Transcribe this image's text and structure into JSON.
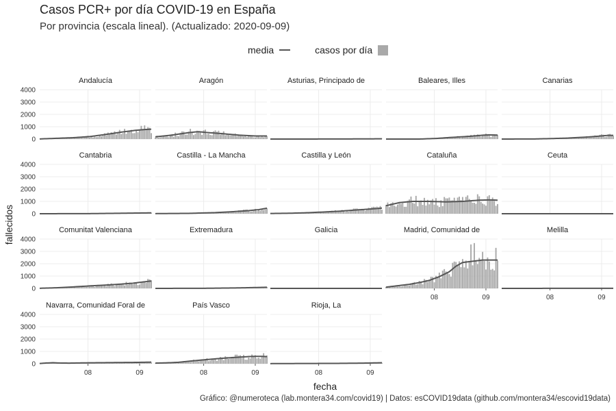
{
  "chart_data": {
    "type": "bar",
    "title": "Casos PCR+ por día COVID-19 en España",
    "subtitle": "Por provincia (escala lineal). (Actualizado: 2020-09-09)",
    "xlabel": "fecha",
    "ylabel": "fallecidos",
    "ylim": [
      0,
      4000
    ],
    "y_ticks": [
      0,
      1000,
      2000,
      3000,
      4000
    ],
    "y_tick_labels": [
      "0",
      "1000",
      "2000",
      "3000",
      "4000"
    ],
    "x_ticks": [
      "2020-08-01",
      "2020-09-01"
    ],
    "x_tick_labels": [
      "08",
      "09"
    ],
    "x_range": [
      "2020-07-03",
      "2020-09-08"
    ],
    "legend": {
      "placement": "top",
      "line_label": "media",
      "bar_label": "casos por día"
    },
    "caption": "Gráfico: @numeroteca (lab.montera34.com/covid19) | Datos: esCOVID19data (github.com/montera34/escovid19data)",
    "bar_color": "#a9a9a9",
    "line_color": "#555555",
    "grid": true,
    "panels": [
      {
        "name": "Andalucía",
        "bar_keys": [
          [
            0,
            10
          ],
          [
            8,
            40
          ],
          [
            16,
            90
          ],
          [
            22,
            120
          ],
          [
            30,
            200
          ],
          [
            36,
            300
          ],
          [
            42,
            420
          ],
          [
            48,
            560
          ],
          [
            54,
            700
          ],
          [
            59,
            800
          ],
          [
            64,
            820
          ],
          [
            67,
            780
          ]
        ],
        "line_keys": [
          [
            0,
            10
          ],
          [
            10,
            60
          ],
          [
            20,
            110
          ],
          [
            30,
            200
          ],
          [
            40,
            380
          ],
          [
            50,
            580
          ],
          [
            57,
            700
          ],
          [
            62,
            760
          ],
          [
            67,
            800
          ]
        ]
      },
      {
        "name": "Aragón",
        "bar_keys": [
          [
            0,
            180
          ],
          [
            6,
            250
          ],
          [
            10,
            320
          ],
          [
            16,
            450
          ],
          [
            22,
            600
          ],
          [
            26,
            520
          ],
          [
            30,
            560
          ],
          [
            36,
            500
          ],
          [
            42,
            420
          ],
          [
            48,
            350
          ],
          [
            54,
            280
          ],
          [
            60,
            240
          ],
          [
            67,
            230
          ]
        ],
        "line_keys": [
          [
            0,
            180
          ],
          [
            10,
            320
          ],
          [
            20,
            520
          ],
          [
            26,
            600
          ],
          [
            30,
            540
          ],
          [
            40,
            440
          ],
          [
            50,
            320
          ],
          [
            60,
            250
          ],
          [
            67,
            250
          ]
        ]
      },
      {
        "name": "Asturias, Principado de",
        "bar_keys": [
          [
            0,
            0
          ],
          [
            40,
            5
          ],
          [
            67,
            20
          ]
        ],
        "line_keys": [
          [
            0,
            0
          ],
          [
            40,
            5
          ],
          [
            67,
            20
          ]
        ]
      },
      {
        "name": "Baleares, Illes",
        "bar_keys": [
          [
            0,
            0
          ],
          [
            18,
            0
          ],
          [
            22,
            20
          ],
          [
            30,
            60
          ],
          [
            36,
            110
          ],
          [
            42,
            160
          ],
          [
            48,
            220
          ],
          [
            54,
            280
          ],
          [
            58,
            350
          ],
          [
            62,
            300
          ],
          [
            67,
            260
          ]
        ],
        "line_keys": [
          [
            0,
            0
          ],
          [
            20,
            0
          ],
          [
            30,
            50
          ],
          [
            40,
            140
          ],
          [
            50,
            220
          ],
          [
            58,
            310
          ],
          [
            62,
            340
          ],
          [
            67,
            320
          ]
        ]
      },
      {
        "name": "Canarias",
        "bar_keys": [
          [
            0,
            0
          ],
          [
            20,
            10
          ],
          [
            30,
            40
          ],
          [
            40,
            80
          ],
          [
            50,
            150
          ],
          [
            58,
            240
          ],
          [
            64,
            320
          ],
          [
            67,
            300
          ]
        ],
        "line_keys": [
          [
            0,
            0
          ],
          [
            20,
            10
          ],
          [
            30,
            40
          ],
          [
            40,
            80
          ],
          [
            50,
            150
          ],
          [
            58,
            230
          ],
          [
            64,
            300
          ],
          [
            67,
            300
          ]
        ]
      },
      {
        "name": "Cantabria",
        "bar_keys": [
          [
            0,
            0
          ],
          [
            30,
            10
          ],
          [
            50,
            40
          ],
          [
            67,
            70
          ]
        ],
        "line_keys": [
          [
            0,
            0
          ],
          [
            30,
            10
          ],
          [
            50,
            40
          ],
          [
            67,
            70
          ]
        ]
      },
      {
        "name": "Castilla - La Mancha",
        "bar_keys": [
          [
            0,
            10
          ],
          [
            20,
            40
          ],
          [
            36,
            90
          ],
          [
            44,
            140
          ],
          [
            50,
            200
          ],
          [
            56,
            260
          ],
          [
            60,
            320
          ],
          [
            64,
            380
          ],
          [
            67,
            480
          ]
        ],
        "line_keys": [
          [
            0,
            10
          ],
          [
            20,
            30
          ],
          [
            36,
            90
          ],
          [
            46,
            160
          ],
          [
            56,
            250
          ],
          [
            62,
            330
          ],
          [
            67,
            450
          ]
        ]
      },
      {
        "name": "Castilla y León",
        "bar_keys": [
          [
            0,
            20
          ],
          [
            12,
            40
          ],
          [
            22,
            80
          ],
          [
            32,
            140
          ],
          [
            42,
            220
          ],
          [
            50,
            300
          ],
          [
            58,
            380
          ],
          [
            64,
            420
          ],
          [
            67,
            470
          ]
        ],
        "line_keys": [
          [
            0,
            20
          ],
          [
            12,
            40
          ],
          [
            22,
            80
          ],
          [
            32,
            140
          ],
          [
            42,
            210
          ],
          [
            50,
            290
          ],
          [
            58,
            360
          ],
          [
            64,
            420
          ],
          [
            67,
            460
          ]
        ]
      },
      {
        "name": "Cataluña",
        "bar_keys": [
          [
            0,
            650
          ],
          [
            4,
            800
          ],
          [
            8,
            900
          ],
          [
            14,
            1000
          ],
          [
            20,
            1050
          ],
          [
            26,
            1000
          ],
          [
            32,
            980
          ],
          [
            38,
            960
          ],
          [
            44,
            1000
          ],
          [
            50,
            1050
          ],
          [
            56,
            1100
          ],
          [
            62,
            1120
          ],
          [
            67,
            1080
          ]
        ],
        "line_keys": [
          [
            0,
            650
          ],
          [
            8,
            900
          ],
          [
            16,
            1000
          ],
          [
            26,
            1000
          ],
          [
            36,
            960
          ],
          [
            46,
            1000
          ],
          [
            56,
            1100
          ],
          [
            62,
            1120
          ],
          [
            67,
            1100
          ]
        ]
      },
      {
        "name": "Ceuta",
        "bar_keys": [
          [
            0,
            0
          ],
          [
            67,
            0
          ]
        ],
        "line_keys": [
          [
            0,
            0
          ],
          [
            67,
            0
          ]
        ]
      },
      {
        "name": "Comunitat Valenciana",
        "bar_keys": [
          [
            0,
            10
          ],
          [
            8,
            40
          ],
          [
            16,
            90
          ],
          [
            24,
            150
          ],
          [
            32,
            200
          ],
          [
            40,
            260
          ],
          [
            48,
            340
          ],
          [
            54,
            400
          ],
          [
            60,
            480
          ],
          [
            64,
            600
          ],
          [
            67,
            620
          ]
        ],
        "line_keys": [
          [
            0,
            10
          ],
          [
            10,
            50
          ],
          [
            20,
            120
          ],
          [
            30,
            200
          ],
          [
            40,
            270
          ],
          [
            48,
            340
          ],
          [
            56,
            420
          ],
          [
            62,
            520
          ],
          [
            67,
            600
          ]
        ]
      },
      {
        "name": "Extremadura",
        "bar_keys": [
          [
            0,
            0
          ],
          [
            30,
            10
          ],
          [
            50,
            40
          ],
          [
            67,
            90
          ]
        ],
        "line_keys": [
          [
            0,
            0
          ],
          [
            30,
            10
          ],
          [
            50,
            40
          ],
          [
            67,
            90
          ]
        ]
      },
      {
        "name": "Galicia",
        "bar_keys": [
          [
            0,
            0
          ],
          [
            67,
            0
          ]
        ],
        "line_keys": [
          [
            0,
            0
          ],
          [
            67,
            0
          ]
        ]
      },
      {
        "name": "Madrid, Comunidad de",
        "bar_keys": [
          [
            0,
            100
          ],
          [
            6,
            200
          ],
          [
            14,
            330
          ],
          [
            20,
            470
          ],
          [
            26,
            650
          ],
          [
            32,
            950
          ],
          [
            38,
            1350
          ],
          [
            44,
            2100
          ],
          [
            50,
            2600
          ],
          [
            56,
            2500
          ],
          [
            60,
            2300
          ],
          [
            64,
            2300
          ],
          [
            67,
            2300
          ]
        ],
        "line_keys": [
          [
            0,
            100
          ],
          [
            6,
            200
          ],
          [
            14,
            330
          ],
          [
            20,
            470
          ],
          [
            26,
            650
          ],
          [
            32,
            950
          ],
          [
            38,
            1350
          ],
          [
            42,
            1800
          ],
          [
            46,
            2100
          ],
          [
            52,
            2200
          ],
          [
            58,
            2300
          ],
          [
            67,
            2300
          ]
        ]
      },
      {
        "name": "Melilla",
        "bar_keys": [
          [
            0,
            0
          ],
          [
            67,
            10
          ]
        ],
        "line_keys": [
          [
            0,
            0
          ],
          [
            67,
            10
          ]
        ]
      },
      {
        "name": "Navarra, Comunidad Foral de",
        "bar_keys": [
          [
            0,
            20
          ],
          [
            4,
            60
          ],
          [
            8,
            80
          ],
          [
            12,
            60
          ],
          [
            18,
            50
          ],
          [
            26,
            70
          ],
          [
            34,
            80
          ],
          [
            42,
            90
          ],
          [
            50,
            100
          ],
          [
            58,
            110
          ],
          [
            67,
            130
          ]
        ],
        "line_keys": [
          [
            0,
            20
          ],
          [
            4,
            60
          ],
          [
            8,
            80
          ],
          [
            12,
            60
          ],
          [
            18,
            50
          ],
          [
            26,
            70
          ],
          [
            34,
            80
          ],
          [
            42,
            90
          ],
          [
            50,
            100
          ],
          [
            58,
            110
          ],
          [
            67,
            130
          ]
        ]
      },
      {
        "name": "País Vasco",
        "bar_keys": [
          [
            0,
            50
          ],
          [
            8,
            80
          ],
          [
            14,
            120
          ],
          [
            20,
            200
          ],
          [
            26,
            280
          ],
          [
            32,
            350
          ],
          [
            38,
            420
          ],
          [
            44,
            480
          ],
          [
            50,
            530
          ],
          [
            56,
            580
          ],
          [
            60,
            600
          ],
          [
            64,
            600
          ],
          [
            67,
            580
          ]
        ],
        "line_keys": [
          [
            0,
            50
          ],
          [
            8,
            80
          ],
          [
            14,
            120
          ],
          [
            20,
            200
          ],
          [
            26,
            280
          ],
          [
            32,
            350
          ],
          [
            38,
            420
          ],
          [
            44,
            480
          ],
          [
            50,
            530
          ],
          [
            56,
            580
          ],
          [
            60,
            600
          ],
          [
            64,
            600
          ],
          [
            67,
            580
          ]
        ]
      },
      {
        "name": "Rioja, La",
        "bar_keys": [
          [
            0,
            10
          ],
          [
            20,
            20
          ],
          [
            40,
            30
          ],
          [
            56,
            50
          ],
          [
            67,
            80
          ]
        ],
        "line_keys": [
          [
            0,
            10
          ],
          [
            20,
            20
          ],
          [
            40,
            30
          ],
          [
            56,
            50
          ],
          [
            67,
            80
          ]
        ]
      }
    ]
  }
}
